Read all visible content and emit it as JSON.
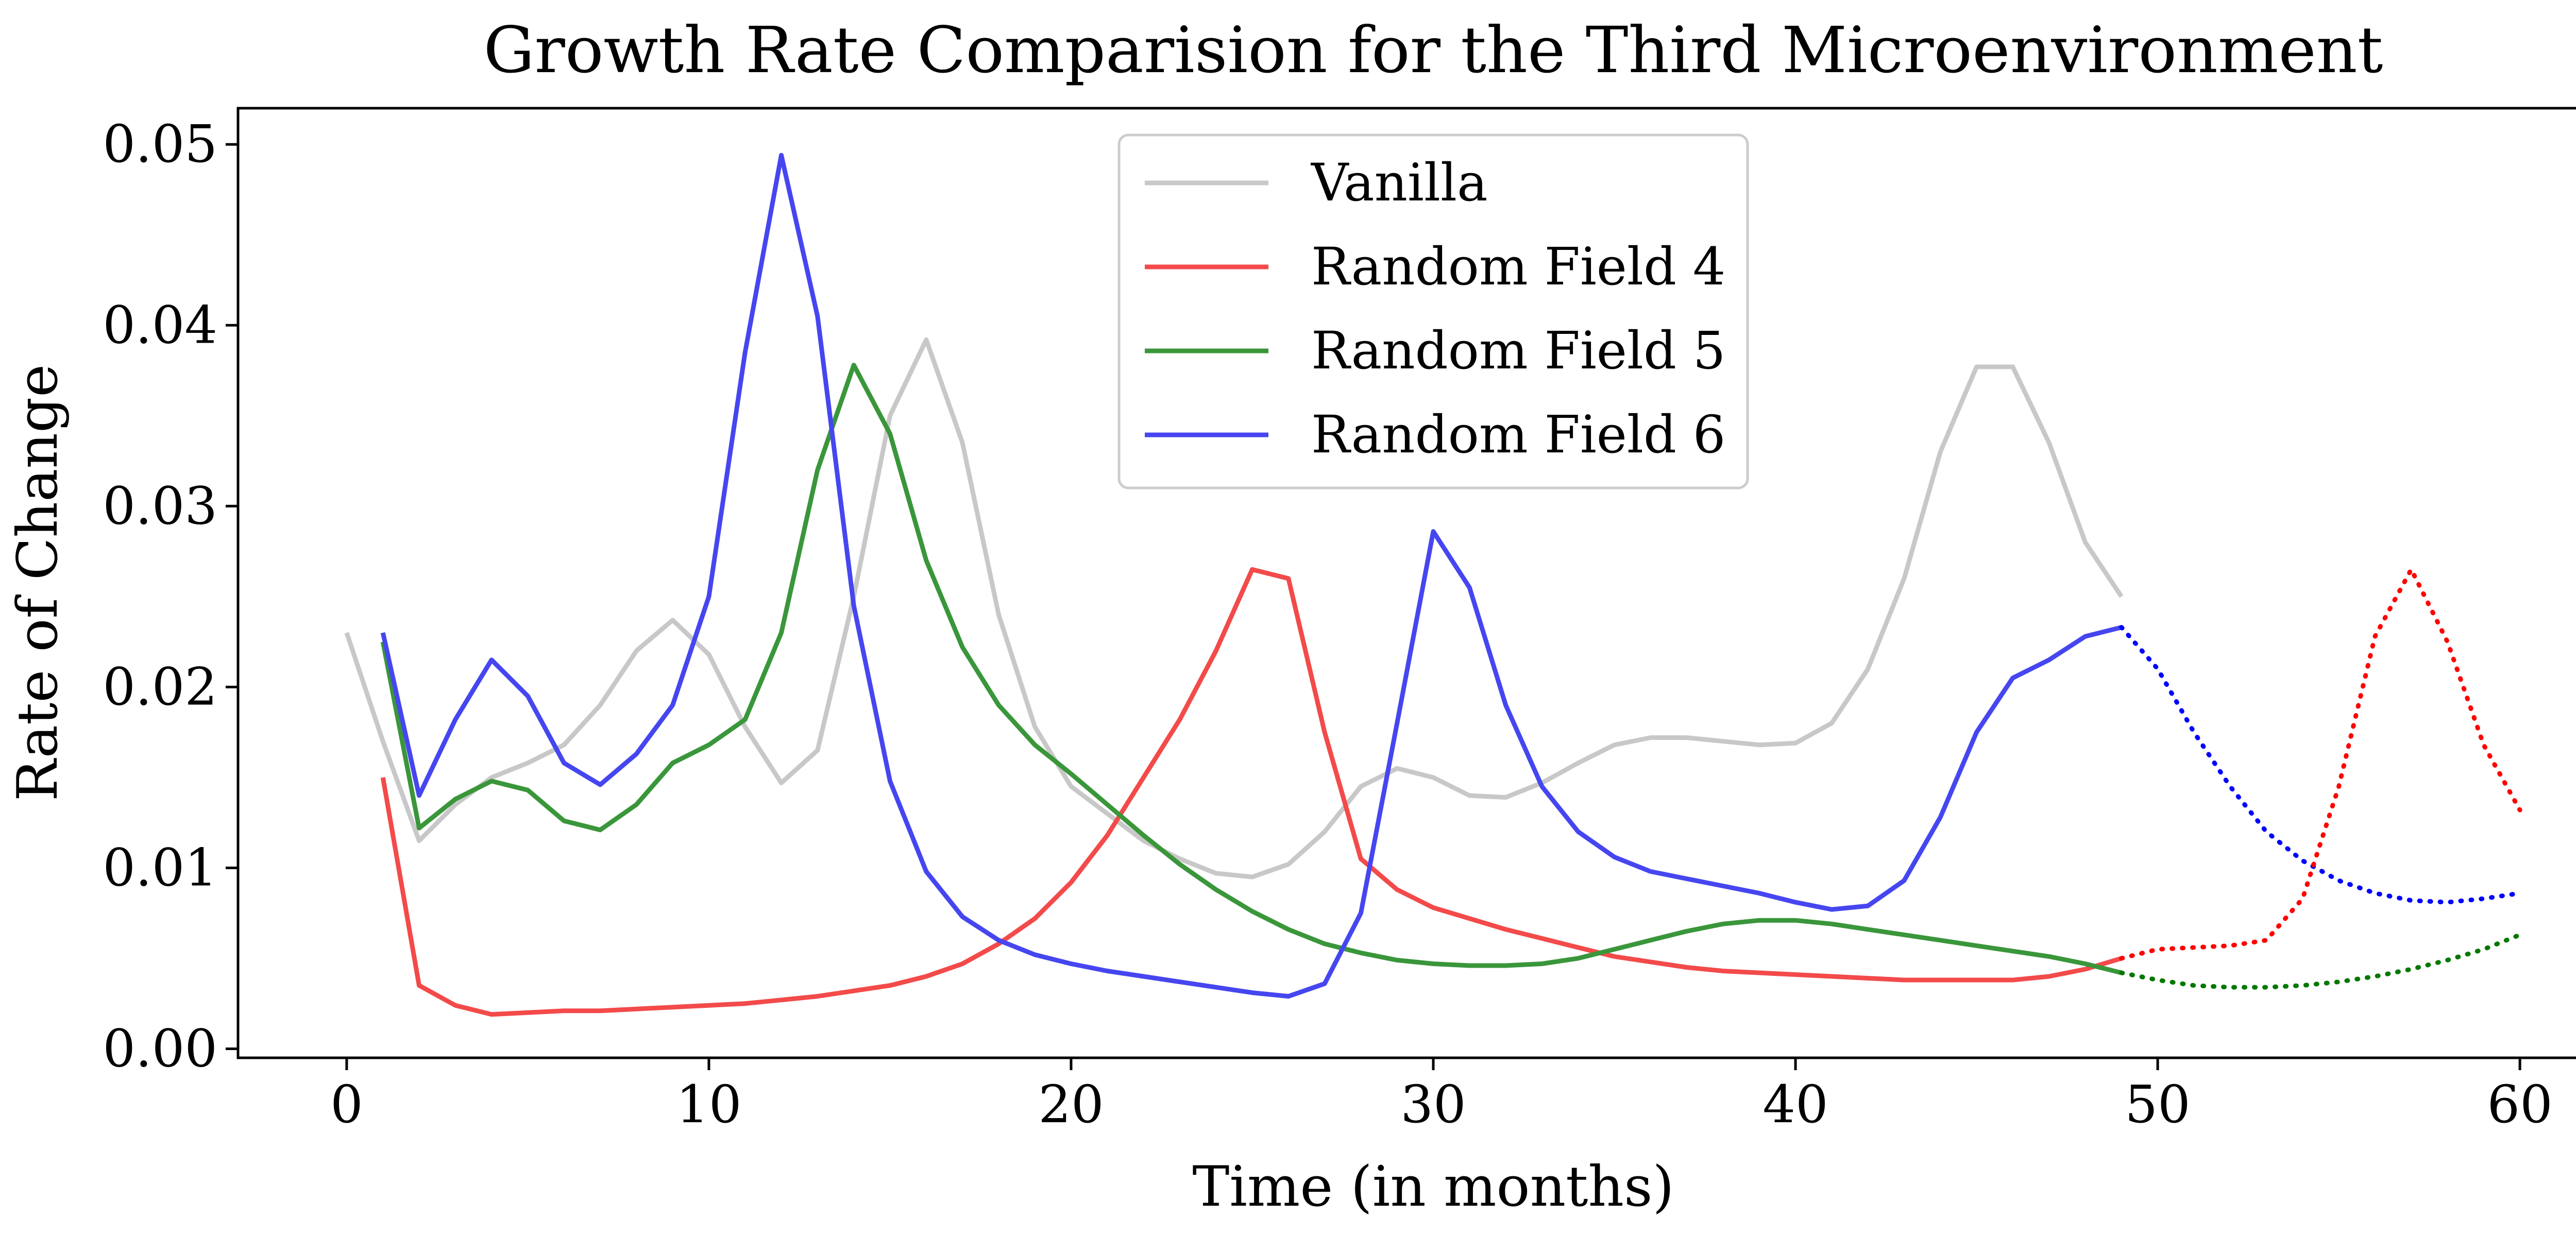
{
  "chart_data": {
    "type": "line",
    "title": "Growth Rate Comparision for the Third Microenvironment",
    "xlabel": "Time (in months)",
    "ylabel": "Rate of Change",
    "xlim": [
      -3,
      63
    ],
    "ylim": [
      -0.0005,
      0.052
    ],
    "xticks": [
      0,
      10,
      20,
      30,
      40,
      50,
      60
    ],
    "xtick_labels": [
      "0",
      "10",
      "20",
      "30",
      "40",
      "50",
      "60"
    ],
    "yticks": [
      0.0,
      0.01,
      0.02,
      0.03,
      0.04,
      0.05
    ],
    "ytick_labels": [
      "0.00",
      "0.01",
      "0.02",
      "0.03",
      "0.04",
      "0.05"
    ],
    "grid": false,
    "legend_position": "top-center",
    "series": [
      {
        "name": "Vanilla",
        "color": "#c8c8c8",
        "style": "solid",
        "x": [
          0,
          1,
          2,
          3,
          4,
          5,
          6,
          7,
          8,
          9,
          10,
          11,
          12,
          13,
          14,
          15,
          16,
          17,
          18,
          19,
          20,
          21,
          22,
          23,
          24,
          25,
          26,
          27,
          28,
          29,
          30,
          31,
          32,
          33,
          34,
          35,
          36,
          37,
          38,
          39,
          40,
          41,
          42,
          43,
          44,
          45,
          46,
          47,
          48,
          49
        ],
        "y": [
          0.023,
          0.017,
          0.0115,
          0.0135,
          0.015,
          0.0158,
          0.0168,
          0.019,
          0.022,
          0.0237,
          0.0218,
          0.0178,
          0.0147,
          0.0165,
          0.025,
          0.035,
          0.0392,
          0.0335,
          0.024,
          0.0178,
          0.0145,
          0.013,
          0.0115,
          0.0105,
          0.0097,
          0.0095,
          0.0102,
          0.012,
          0.0145,
          0.0155,
          0.015,
          0.014,
          0.0139,
          0.0147,
          0.0158,
          0.0168,
          0.0172,
          0.0172,
          0.017,
          0.0168,
          0.0169,
          0.018,
          0.021,
          0.026,
          0.033,
          0.0377,
          0.0377,
          0.0335,
          0.028,
          0.025
        ]
      },
      {
        "name": "Random Field 4",
        "color": "#f34a4a",
        "style": "solid",
        "x": [
          1,
          2,
          3,
          4,
          5,
          6,
          7,
          8,
          9,
          10,
          11,
          12,
          13,
          14,
          15,
          16,
          17,
          18,
          19,
          20,
          21,
          22,
          23,
          24,
          25,
          26,
          27,
          28,
          29,
          30,
          31,
          32,
          33,
          34,
          35,
          36,
          37,
          38,
          39,
          40,
          41,
          42,
          43,
          44,
          45,
          46,
          47,
          48,
          49
        ],
        "y": [
          0.015,
          0.0035,
          0.0024,
          0.0019,
          0.002,
          0.0021,
          0.0021,
          0.0022,
          0.0023,
          0.0024,
          0.0025,
          0.0027,
          0.0029,
          0.0032,
          0.0035,
          0.004,
          0.0047,
          0.0058,
          0.0072,
          0.0092,
          0.0118,
          0.015,
          0.0182,
          0.022,
          0.0265,
          0.026,
          0.0175,
          0.0105,
          0.0088,
          0.0078,
          0.0072,
          0.0066,
          0.0061,
          0.0056,
          0.0051,
          0.0048,
          0.0045,
          0.0043,
          0.0042,
          0.0041,
          0.004,
          0.0039,
          0.0038,
          0.0038,
          0.0038,
          0.0038,
          0.004,
          0.0044,
          0.005
        ]
      },
      {
        "name": "Random Field 5",
        "color": "#3a963a",
        "style": "solid",
        "x": [
          1,
          2,
          3,
          4,
          5,
          6,
          7,
          8,
          9,
          10,
          11,
          12,
          13,
          14,
          15,
          16,
          17,
          18,
          19,
          20,
          21,
          22,
          23,
          24,
          25,
          26,
          27,
          28,
          29,
          30,
          31,
          32,
          33,
          34,
          35,
          36,
          37,
          38,
          39,
          40,
          41,
          42,
          43,
          44,
          45,
          46,
          47,
          48,
          49
        ],
        "y": [
          0.0225,
          0.0122,
          0.0138,
          0.0148,
          0.0143,
          0.0126,
          0.0121,
          0.0135,
          0.0158,
          0.0168,
          0.0182,
          0.023,
          0.032,
          0.0378,
          0.034,
          0.027,
          0.0222,
          0.019,
          0.0168,
          0.0152,
          0.0135,
          0.0118,
          0.0102,
          0.0088,
          0.0076,
          0.0066,
          0.0058,
          0.0053,
          0.0049,
          0.0047,
          0.0046,
          0.0046,
          0.0047,
          0.005,
          0.0055,
          0.006,
          0.0065,
          0.0069,
          0.0071,
          0.0071,
          0.0069,
          0.0066,
          0.0063,
          0.006,
          0.0057,
          0.0054,
          0.0051,
          0.0047,
          0.0042
        ]
      },
      {
        "name": "Random Field 6",
        "color": "#4646f0",
        "style": "solid",
        "x": [
          1,
          2,
          3,
          4,
          5,
          6,
          7,
          8,
          9,
          10,
          11,
          12,
          13,
          14,
          15,
          16,
          17,
          18,
          19,
          20,
          21,
          22,
          23,
          24,
          25,
          26,
          27,
          28,
          29,
          30,
          31,
          32,
          33,
          34,
          35,
          36,
          37,
          38,
          39,
          40,
          41,
          42,
          43,
          44,
          45,
          46,
          47,
          48,
          49
        ],
        "y": [
          0.023,
          0.014,
          0.0182,
          0.0215,
          0.0195,
          0.0158,
          0.0146,
          0.0163,
          0.019,
          0.025,
          0.0385,
          0.0494,
          0.0405,
          0.0245,
          0.0148,
          0.0098,
          0.0073,
          0.006,
          0.0052,
          0.0047,
          0.0043,
          0.004,
          0.0037,
          0.0034,
          0.0031,
          0.0029,
          0.0036,
          0.0075,
          0.018,
          0.0286,
          0.0255,
          0.019,
          0.0145,
          0.012,
          0.0106,
          0.0098,
          0.0094,
          0.009,
          0.0086,
          0.0081,
          0.0077,
          0.0079,
          0.0093,
          0.0128,
          0.0175,
          0.0205,
          0.0215,
          0.0228,
          0.0233
        ]
      },
      {
        "color": "#0000ff",
        "style": "dotted",
        "x": [
          49,
          50,
          51,
          52,
          53,
          54,
          55,
          56,
          57,
          58,
          59,
          60
        ],
        "y": [
          0.0233,
          0.021,
          0.0175,
          0.0145,
          0.012,
          0.0104,
          0.0093,
          0.0086,
          0.0082,
          0.0081,
          0.0083,
          0.0086
        ]
      },
      {
        "color": "#ff0000",
        "style": "dotted",
        "x": [
          49,
          50,
          51,
          52,
          53,
          54,
          55,
          56,
          57,
          58,
          59,
          60
        ],
        "y": [
          0.005,
          0.0055,
          0.0056,
          0.0057,
          0.006,
          0.0083,
          0.0145,
          0.0228,
          0.0265,
          0.0225,
          0.0168,
          0.0132
        ]
      },
      {
        "color": "#007800",
        "style": "dotted",
        "x": [
          49,
          50,
          51,
          52,
          53,
          54,
          55,
          56,
          57,
          58,
          59,
          60
        ],
        "y": [
          0.0042,
          0.0038,
          0.0035,
          0.0034,
          0.0034,
          0.0035,
          0.0037,
          0.004,
          0.0044,
          0.0049,
          0.0055,
          0.0063
        ]
      }
    ]
  }
}
